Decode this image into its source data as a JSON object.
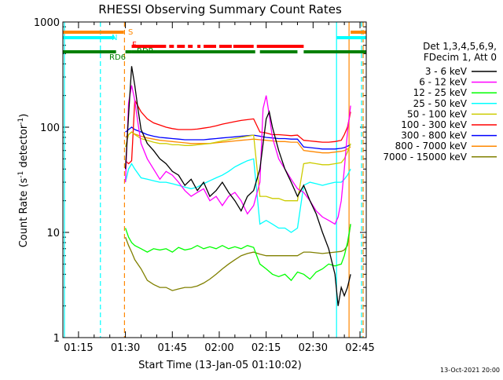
{
  "chart_data": {
    "type": "line",
    "title": "RHESSI Observing Summary Count Rates",
    "xlabel": "Start Time (13-Jan-05 01:10:02)",
    "ylabel_main": "Count Rate (s",
    "ylabel_sup": "-1",
    "ylabel_tail": " detector",
    "ylabel_sup2": "-1",
    "ylabel_close": ")",
    "ylog": true,
    "ylim": [
      1,
      1000
    ],
    "yticks": [
      1,
      10,
      100,
      1000
    ],
    "ytick_labels": [
      "1",
      "10",
      "100",
      "1000"
    ],
    "xlim": [
      70,
      167
    ],
    "xticks": [
      75,
      90,
      105,
      120,
      135,
      150,
      165
    ],
    "xtick_labels": [
      "01:15",
      "01:30",
      "01:45",
      "02:00",
      "02:15",
      "02:30",
      "02:45"
    ],
    "timestamp": "13-Oct-2021 20:00",
    "legend": {
      "header1": "Det 1,3,4,5,6,9,",
      "header2": "FDecim 1, Att 0",
      "placement": "right"
    },
    "series": [
      {
        "name": "3 - 6 keV",
        "color": "#000000",
        "x": [
          90,
          91,
          92,
          93,
          94,
          95,
          97,
          99,
          101,
          103,
          105,
          107,
          109,
          111,
          113,
          115,
          117,
          119,
          121,
          123,
          125,
          127,
          129,
          131,
          133,
          135,
          136,
          137,
          139,
          141,
          143,
          145,
          147,
          149,
          151,
          153,
          155,
          157,
          158,
          159,
          160,
          161,
          162
        ],
        "y": [
          40,
          130,
          380,
          250,
          150,
          95,
          70,
          60,
          50,
          45,
          38,
          35,
          28,
          32,
          25,
          30,
          22,
          25,
          30,
          24,
          20,
          16,
          22,
          25,
          40,
          120,
          140,
          100,
          60,
          40,
          30,
          22,
          28,
          20,
          15,
          10,
          7,
          4,
          2,
          3,
          2.5,
          3,
          4
        ]
      },
      {
        "name": "6 - 12 keV",
        "color": "#ff00ff",
        "x": [
          90,
          91,
          92,
          93,
          94,
          95,
          97,
          99,
          101,
          103,
          105,
          107,
          109,
          111,
          113,
          115,
          117,
          119,
          121,
          123,
          125,
          127,
          129,
          131,
          133,
          134,
          135,
          136,
          137,
          139,
          141,
          143,
          145,
          147,
          149,
          151,
          153,
          155,
          157,
          158,
          159,
          160,
          161,
          162
        ],
        "y": [
          30,
          170,
          250,
          180,
          110,
          70,
          50,
          40,
          32,
          38,
          35,
          30,
          25,
          22,
          24,
          26,
          20,
          22,
          18,
          22,
          24,
          20,
          15,
          18,
          30,
          150,
          200,
          130,
          80,
          50,
          40,
          32,
          26,
          24,
          20,
          16,
          14,
          13,
          12,
          14,
          20,
          40,
          90,
          160
        ]
      },
      {
        "name": "12 - 25 keV",
        "color": "#00ff00",
        "x": [
          90,
          91,
          92,
          93,
          95,
          97,
          99,
          101,
          103,
          105,
          107,
          109,
          111,
          113,
          115,
          117,
          119,
          121,
          123,
          125,
          127,
          129,
          131,
          133,
          135,
          137,
          139,
          141,
          143,
          145,
          147,
          149,
          151,
          153,
          155,
          157,
          159,
          160,
          161,
          162
        ],
        "y": [
          11,
          9,
          8,
          7.5,
          7,
          6.5,
          7,
          6.8,
          7,
          6.5,
          7.2,
          6.8,
          7,
          7.5,
          7,
          7.3,
          7,
          7.5,
          7,
          7.3,
          7,
          7.5,
          7.2,
          5,
          4.5,
          4,
          3.8,
          4,
          3.5,
          4.2,
          4,
          3.6,
          4.2,
          4.5,
          5,
          4.8,
          5,
          6,
          8,
          12
        ]
      },
      {
        "name": "25 - 50 keV",
        "color": "#00ffff",
        "x": [
          90,
          91,
          92,
          93,
          95,
          97,
          99,
          101,
          103,
          105,
          107,
          109,
          111,
          113,
          115,
          117,
          119,
          121,
          123,
          125,
          127,
          129,
          131,
          133,
          135,
          137,
          139,
          141,
          143,
          145,
          147,
          149,
          151,
          153,
          155,
          157,
          159,
          160,
          161,
          162
        ],
        "y": [
          30,
          40,
          45,
          40,
          33,
          32,
          31,
          30,
          30,
          29,
          28,
          27,
          26,
          27,
          29,
          31,
          33,
          35,
          38,
          42,
          45,
          48,
          50,
          12,
          13,
          12,
          11,
          11,
          10,
          11,
          28,
          30,
          29,
          28,
          29,
          30,
          30,
          32,
          35,
          40
        ]
      },
      {
        "name": "50 - 100 keV",
        "color": "#cccc00",
        "x": [
          90,
          91,
          92,
          93,
          95,
          97,
          99,
          101,
          103,
          105,
          107,
          109,
          111,
          113,
          115,
          117,
          119,
          121,
          123,
          125,
          127,
          129,
          131,
          133,
          135,
          137,
          139,
          141,
          143,
          145,
          147,
          149,
          151,
          153,
          155,
          157,
          159,
          160,
          161,
          162
        ],
        "y": [
          65,
          85,
          90,
          85,
          78,
          75,
          72,
          70,
          70,
          68,
          68,
          67,
          67,
          68,
          69,
          70,
          72,
          74,
          76,
          78,
          80,
          82,
          84,
          22,
          22,
          21,
          21,
          20,
          20,
          20,
          45,
          46,
          45,
          44,
          44,
          45,
          46,
          50,
          58,
          70
        ]
      },
      {
        "name": "100 - 300 keV",
        "color": "#ff0000",
        "x": [
          90,
          91,
          92,
          93,
          95,
          97,
          99,
          101,
          103,
          105,
          107,
          109,
          111,
          113,
          115,
          117,
          119,
          121,
          123,
          125,
          127,
          129,
          131,
          133,
          135,
          137,
          139,
          141,
          143,
          145,
          147,
          149,
          151,
          153,
          155,
          157,
          159,
          160,
          161,
          162
        ],
        "y": [
          48,
          45,
          48,
          180,
          140,
          120,
          110,
          105,
          100,
          97,
          95,
          95,
          95,
          96,
          98,
          100,
          103,
          107,
          110,
          113,
          116,
          118,
          120,
          90,
          88,
          85,
          85,
          84,
          83,
          84,
          75,
          74,
          73,
          72,
          72,
          73,
          75,
          85,
          100,
          140
        ]
      },
      {
        "name": "300 - 800 keV",
        "color": "#0000ff",
        "x": [
          90,
          91,
          92,
          93,
          95,
          97,
          99,
          101,
          103,
          105,
          107,
          109,
          111,
          113,
          115,
          117,
          119,
          121,
          123,
          125,
          127,
          129,
          131,
          133,
          135,
          137,
          139,
          141,
          143,
          145,
          147,
          149,
          151,
          153,
          155,
          157,
          159,
          160,
          161,
          162
        ],
        "y": [
          90,
          95,
          100,
          95,
          90,
          85,
          82,
          80,
          79,
          78,
          77,
          76,
          76,
          76,
          76,
          77,
          78,
          79,
          80,
          81,
          82,
          83,
          84,
          82,
          80,
          79,
          78,
          78,
          77,
          77,
          65,
          64,
          63,
          62,
          62,
          62,
          63,
          64,
          66,
          68
        ]
      },
      {
        "name": "800 - 7000 keV",
        "color": "#ff8800",
        "x": [
          90,
          91,
          92,
          93,
          95,
          97,
          99,
          101,
          103,
          105,
          107,
          109,
          111,
          113,
          115,
          117,
          119,
          121,
          123,
          125,
          127,
          129,
          131,
          133,
          135,
          137,
          139,
          141,
          143,
          145,
          147,
          149,
          151,
          153,
          155,
          157,
          159,
          160,
          161,
          162
        ],
        "y": [
          80,
          85,
          90,
          86,
          82,
          79,
          77,
          75,
          74,
          73,
          72,
          71,
          70,
          70,
          70,
          70,
          71,
          72,
          73,
          74,
          75,
          76,
          77,
          76,
          75,
          74,
          73,
          73,
          72,
          72,
          60,
          59,
          58,
          57,
          57,
          58,
          59,
          60,
          62,
          65
        ]
      },
      {
        "name": "7000 - 15000 keV",
        "color": "#808000",
        "x": [
          90,
          91,
          92,
          93,
          95,
          97,
          99,
          101,
          103,
          105,
          107,
          109,
          111,
          113,
          115,
          117,
          119,
          121,
          123,
          125,
          127,
          129,
          131,
          133,
          135,
          137,
          139,
          141,
          143,
          145,
          147,
          149,
          151,
          153,
          155,
          157,
          159,
          160,
          161,
          162
        ],
        "y": [
          9,
          7.5,
          6.5,
          5.5,
          4.5,
          3.5,
          3.2,
          3,
          3,
          2.8,
          2.9,
          3,
          3,
          3.1,
          3.3,
          3.6,
          4,
          4.5,
          5,
          5.5,
          6,
          6.3,
          6.5,
          6.2,
          6,
          6,
          6,
          6,
          6,
          6,
          6.5,
          6.5,
          6.4,
          6.3,
          6.4,
          6.5,
          6.6,
          6.8,
          7.5,
          12
        ]
      }
    ],
    "flags": [
      {
        "label": "S",
        "color": "#ff8800",
        "segments": [
          [
            70,
            89.5
          ],
          [
            162,
            167
          ]
        ]
      },
      {
        "label": "N",
        "color": "#00ffff",
        "segments": [
          [
            70,
            86.5
          ],
          [
            157.5,
            167
          ]
        ]
      },
      {
        "label": "F",
        "color": "#ff0000",
        "segments": [
          [
            92,
            103
          ],
          [
            104,
            105.5
          ],
          [
            106.5,
            109
          ],
          [
            110,
            111.5
          ],
          [
            113,
            114
          ],
          [
            115,
            119
          ],
          [
            120,
            124
          ],
          [
            124.5,
            131
          ],
          [
            132,
            147
          ]
        ]
      },
      {
        "label": "RDP",
        "color": "#008000",
        "segments": [
          [
            92,
            131.5
          ],
          [
            147,
            167
          ]
        ]
      },
      {
        "label": "RD6",
        "color": "#008000",
        "segments": [
          [
            70,
            87
          ],
          [
            90,
            92
          ],
          [
            133,
            145
          ]
        ]
      }
    ],
    "vertical_lines": [
      {
        "x": 70.5,
        "color": "#00ffff",
        "dashed": false
      },
      {
        "x": 82,
        "color": "#00ffff",
        "dashed": true
      },
      {
        "x": 89.7,
        "color": "#ff8800",
        "dashed": true
      },
      {
        "x": 157.5,
        "color": "#00ffff",
        "dashed": false
      },
      {
        "x": 161.5,
        "color": "#ff8800",
        "dashed": false
      },
      {
        "x": 165.5,
        "color": "#00ffff",
        "dashed": true
      },
      {
        "x": 166,
        "color": "#ff8800",
        "dashed": true
      }
    ]
  }
}
